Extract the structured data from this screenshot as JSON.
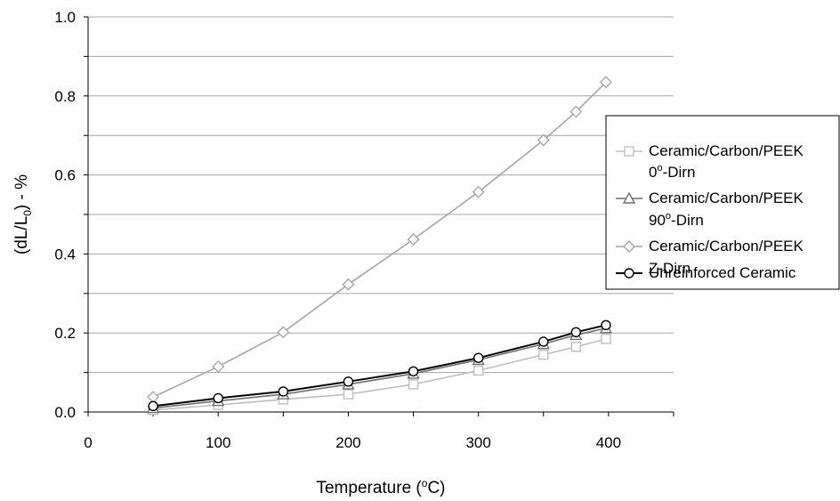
{
  "chart_data": {
    "type": "line",
    "title": "",
    "xlabel": {
      "base": "Temperature (",
      "sup": "o",
      "tail": "C)"
    },
    "ylabel": {
      "base": "(dL/L",
      "sub": "0",
      "tail": ") - %"
    },
    "xlim": [
      0,
      450
    ],
    "ylim": [
      0,
      1.0
    ],
    "x_ticks": [
      0,
      100,
      200,
      300,
      400
    ],
    "y_ticks": [
      "0.0",
      "0.2",
      "0.4",
      "0.6",
      "0.8",
      "1.0"
    ],
    "grid": {
      "horizontal": true,
      "vertical": false
    },
    "legend_position": "right",
    "series": [
      {
        "name": {
          "line1": "Ceramic/Carbon/PEEK",
          "line2_base": "0",
          "line2_sup": "o",
          "line2_tail": "-Dirn"
        },
        "marker": "square",
        "color": "#bfbfbf",
        "x": [
          50,
          100,
          150,
          200,
          250,
          300,
          350,
          375,
          398
        ],
        "y": [
          0.005,
          0.018,
          0.032,
          0.045,
          0.07,
          0.105,
          0.145,
          0.165,
          0.185
        ]
      },
      {
        "name": {
          "line1": "Ceramic/Carbon/PEEK",
          "line2_base": "90",
          "line2_sup": "o",
          "line2_tail": "-Dirn"
        },
        "marker": "triangle",
        "color": "#707070",
        "x": [
          50,
          100,
          150,
          200,
          250,
          300,
          350,
          375,
          398
        ],
        "y": [
          0.01,
          0.028,
          0.045,
          0.07,
          0.097,
          0.132,
          0.172,
          0.195,
          0.212
        ]
      },
      {
        "name": {
          "line1": "Ceramic/Carbon/PEEK",
          "line2_base": "Z-Dirn",
          "line2_sup": "",
          "line2_tail": ""
        },
        "marker": "diamond",
        "color": "#a6a6a6",
        "x": [
          50,
          100,
          150,
          200,
          250,
          300,
          350,
          375,
          398
        ],
        "y": [
          0.038,
          0.115,
          0.202,
          0.323,
          0.437,
          0.557,
          0.688,
          0.76,
          0.835
        ]
      },
      {
        "name": {
          "line1": "Unreinforced Ceramic",
          "line2_base": "",
          "line2_sup": "",
          "line2_tail": ""
        },
        "marker": "circle",
        "color": "#000000",
        "x": [
          50,
          100,
          150,
          200,
          250,
          300,
          350,
          375,
          398
        ],
        "y": [
          0.015,
          0.035,
          0.052,
          0.077,
          0.103,
          0.137,
          0.178,
          0.202,
          0.22
        ]
      }
    ]
  }
}
